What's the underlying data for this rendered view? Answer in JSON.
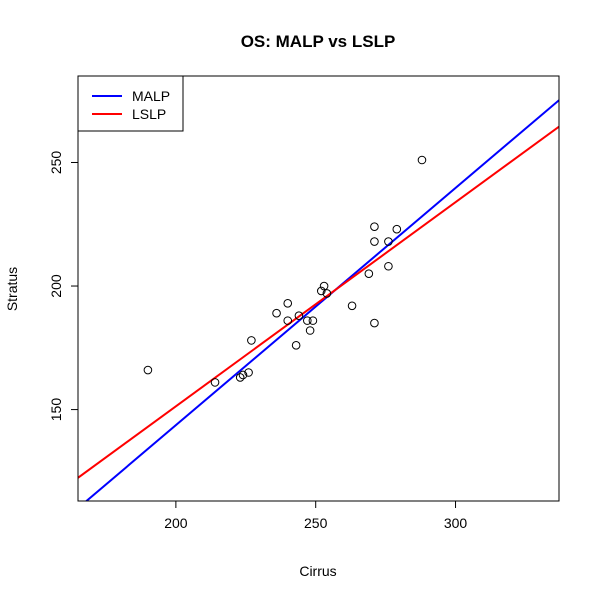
{
  "chart_data": {
    "type": "scatter",
    "title": "OS: MALP vs LSLP",
    "xlabel": "Cirrus",
    "ylabel": "Stratus",
    "xlim": [
      165,
      337
    ],
    "ylim": [
      113,
      285
    ],
    "x_ticks": [
      200,
      250,
      300
    ],
    "y_ticks": [
      150,
      200,
      250
    ],
    "x_tick_labels": [
      "200",
      "250",
      "300"
    ],
    "y_tick_labels": [
      "150",
      "200",
      "250"
    ],
    "grid": false,
    "legend_position": "top-left",
    "points": [
      {
        "x": 190,
        "y": 166
      },
      {
        "x": 214,
        "y": 161
      },
      {
        "x": 223,
        "y": 163
      },
      {
        "x": 224,
        "y": 164
      },
      {
        "x": 226,
        "y": 165
      },
      {
        "x": 227,
        "y": 178
      },
      {
        "x": 236,
        "y": 189
      },
      {
        "x": 240,
        "y": 193
      },
      {
        "x": 240,
        "y": 186
      },
      {
        "x": 243,
        "y": 176
      },
      {
        "x": 244,
        "y": 188
      },
      {
        "x": 247,
        "y": 186
      },
      {
        "x": 248,
        "y": 182
      },
      {
        "x": 249,
        "y": 186
      },
      {
        "x": 252,
        "y": 198
      },
      {
        "x": 253,
        "y": 200
      },
      {
        "x": 254,
        "y": 197
      },
      {
        "x": 263,
        "y": 192
      },
      {
        "x": 269,
        "y": 205
      },
      {
        "x": 271,
        "y": 224
      },
      {
        "x": 271,
        "y": 218
      },
      {
        "x": 271,
        "y": 185
      },
      {
        "x": 276,
        "y": 218
      },
      {
        "x": 276,
        "y": 208
      },
      {
        "x": 279,
        "y": 223
      },
      {
        "x": 288,
        "y": 251
      }
    ],
    "series": [
      {
        "name": "MALP",
        "color": "#0000ff",
        "line": [
          [
            165,
            110.1
          ],
          [
            337,
            275.2
          ]
        ]
      },
      {
        "name": "LSLP",
        "color": "#ff0000",
        "line": [
          [
            165,
            122.4
          ],
          [
            337,
            264.5
          ]
        ]
      }
    ]
  }
}
